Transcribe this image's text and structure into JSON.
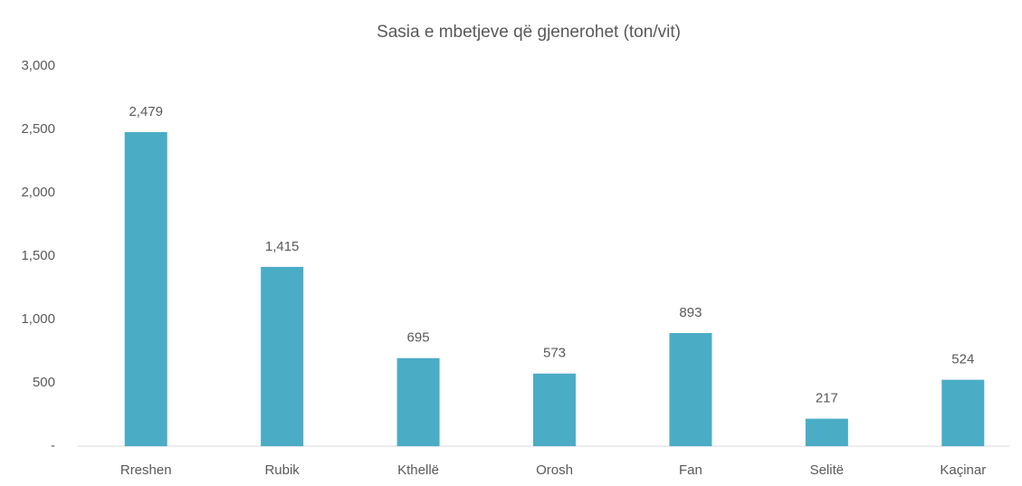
{
  "chart_data": {
    "type": "bar",
    "title": "Sasia e mbetjeve që gjenerohet (ton/vit)",
    "categories": [
      "Rreshen",
      "Rubik",
      "Kthellë",
      "Orosh",
      "Fan",
      "Selitë",
      "Kaçinar"
    ],
    "values": [
      2479,
      1415,
      695,
      573,
      893,
      217,
      524
    ],
    "value_labels": [
      "2,479",
      "1,415",
      "695",
      "573",
      "893",
      "217",
      "524"
    ],
    "color": "#4bacc6",
    "ylim": [
      0,
      3000
    ],
    "yticks": [
      {
        "value": 0,
        "label": "-"
      },
      500,
      {
        "value": 1000,
        "label": "1,000"
      },
      {
        "value": 1500,
        "label": "1,500"
      },
      {
        "value": 2000,
        "label": "2,000"
      },
      {
        "value": 2500,
        "label": "2,500"
      },
      {
        "value": 3000,
        "label": "3,000"
      }
    ],
    "grid": false
  }
}
